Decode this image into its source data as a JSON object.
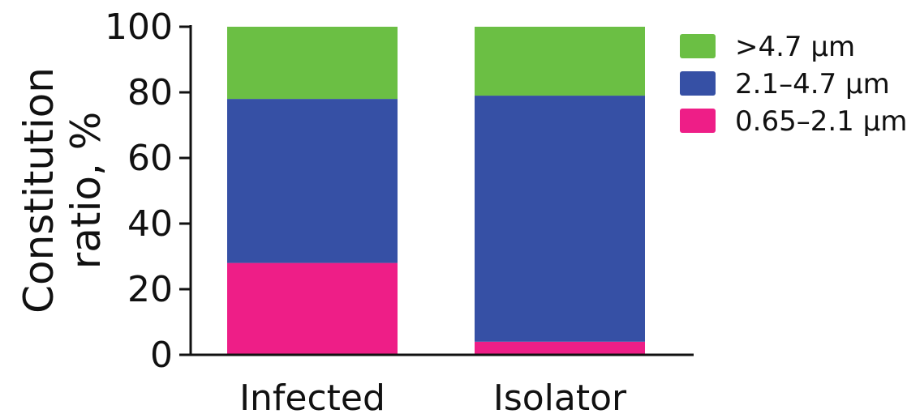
{
  "chart_data": {
    "type": "bar",
    "stacked": true,
    "categories": [
      "Infected",
      "Isolator"
    ],
    "series": [
      {
        "name": "0.65–2.1 µm",
        "color": "#ee1e87",
        "values": [
          28,
          4
        ]
      },
      {
        "name": "2.1–4.7 µm",
        "color": "#3650a5",
        "values": [
          50,
          75
        ]
      },
      {
        "name": ">4.7 µm",
        "color": "#6bbf44",
        "values": [
          22,
          21
        ]
      }
    ],
    "ylabel": [
      "Constitution",
      "ratio, %"
    ],
    "ylim": [
      0,
      100
    ],
    "yticks": [
      0,
      20,
      40,
      60,
      80,
      100
    ],
    "legend": {
      "position": "top-right",
      "order": [
        ">4.7 µm",
        "2.1–4.7 µm",
        "0.65–2.1 µm"
      ]
    },
    "grid": false
  }
}
